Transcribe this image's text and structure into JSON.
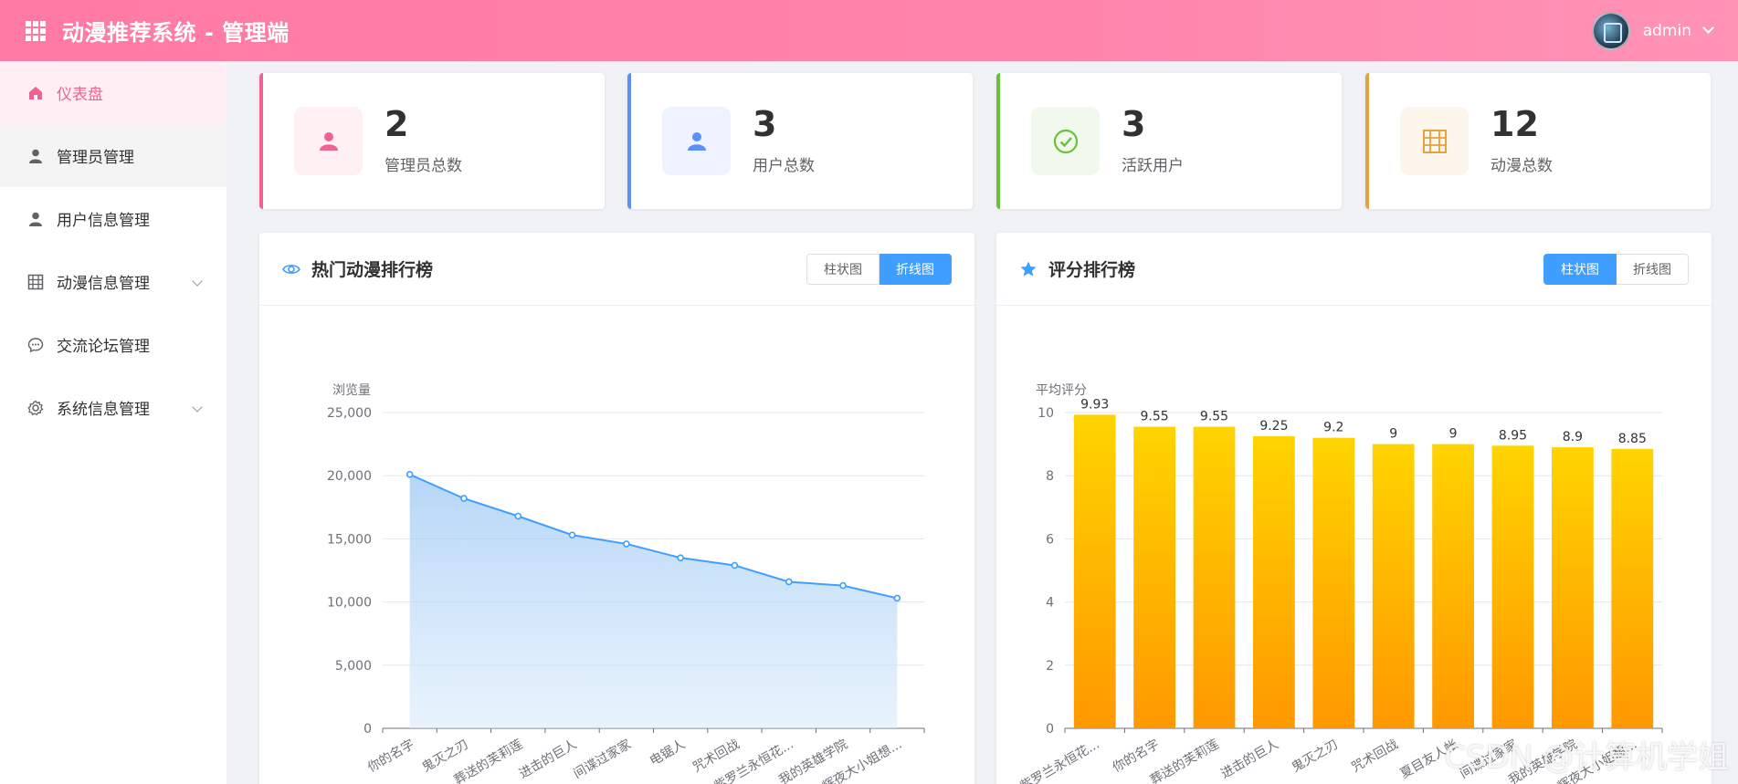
{
  "header": {
    "title": "动漫推荐系统 - 管理端",
    "username": "admin"
  },
  "sidebar": {
    "items": [
      {
        "label": "仪表盘"
      },
      {
        "label": "管理员管理"
      },
      {
        "label": "用户信息管理"
      },
      {
        "label": "动漫信息管理"
      },
      {
        "label": "交流论坛管理"
      },
      {
        "label": "系统信息管理"
      }
    ]
  },
  "stats": [
    {
      "value": "2",
      "label": "管理员总数",
      "color": "#f06292"
    },
    {
      "value": "3",
      "label": "用户总数",
      "color": "#5b8ff9"
    },
    {
      "value": "3",
      "label": "活跃用户",
      "color": "#67c23a"
    },
    {
      "value": "12",
      "label": "动漫总数",
      "color": "#e6a23c"
    }
  ],
  "hot_panel": {
    "title": "热门动漫排行榜",
    "btn_bar": "柱状图",
    "btn_line": "折线图"
  },
  "rating_panel": {
    "title": "评分排行榜",
    "btn_bar": "柱状图",
    "btn_line": "折线图"
  },
  "watermark": "CSDN @计算机学姐",
  "chart_data": [
    {
      "type": "line",
      "ylabel": "浏览量",
      "ylim": [
        0,
        25000
      ],
      "yticks": [
        "0",
        "5,000",
        "10,000",
        "15,000",
        "20,000",
        "25,000"
      ],
      "categories": [
        "你的名字",
        "鬼灭之刃",
        "葬送的芙莉莲",
        "进击的巨人",
        "间谍过家家",
        "电锯人",
        "咒术回战",
        "紫罗兰永恒花...",
        "我的英雄学院",
        "辉夜大小姐想..."
      ],
      "values": [
        20100,
        18200,
        16800,
        15300,
        14600,
        13500,
        12900,
        11600,
        11300,
        10300
      ]
    },
    {
      "type": "bar",
      "ylabel": "平均评分",
      "ylim": [
        0,
        10
      ],
      "yticks": [
        "0",
        "2",
        "4",
        "6",
        "8",
        "10"
      ],
      "categories": [
        "紫罗兰永恒花...",
        "你的名字",
        "葬送的芙莉莲",
        "进击的巨人",
        "鬼灭之刃",
        "咒术回战",
        "夏目友人帐",
        "间谍过家家",
        "我的英雄学院",
        "辉夜大小姐想..."
      ],
      "values": [
        9.93,
        9.55,
        9.55,
        9.25,
        9.2,
        9,
        9,
        8.95,
        8.9,
        8.85
      ],
      "labels": [
        "9.93",
        "9.55",
        "9.55",
        "9.25",
        "9.2",
        "9",
        "9",
        "8.95",
        "8.9",
        "8.85"
      ]
    }
  ]
}
